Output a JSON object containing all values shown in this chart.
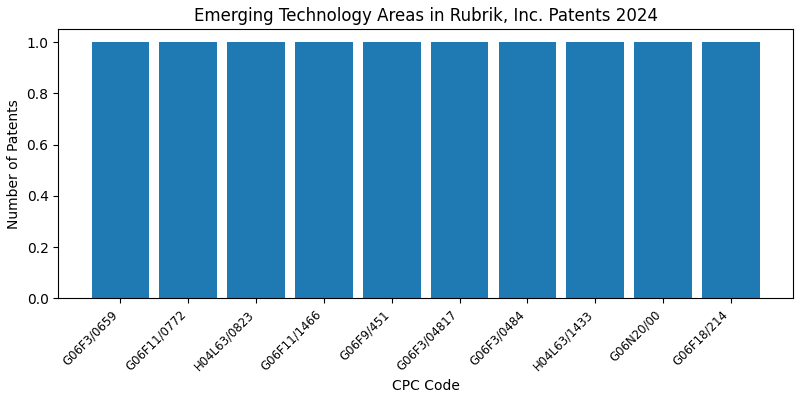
{
  "title": "Emerging Technology Areas in Rubrik, Inc. Patents 2024",
  "xlabel": "CPC Code",
  "ylabel": "Number of Patents",
  "categories": [
    "G06F3/0659",
    "G06F11/0772",
    "H04L63/0823",
    "G06F11/1466",
    "G06F9/451",
    "G06F3/04817",
    "G06F3/0484",
    "H04L63/1433",
    "G06N20/00",
    "G06F18/214"
  ],
  "values": [
    1,
    1,
    1,
    1,
    1,
    1,
    1,
    1,
    1,
    1
  ],
  "bar_color": "#1f7ab4",
  "ylim": [
    0,
    1.05
  ],
  "yticks": [
    0.0,
    0.2,
    0.4,
    0.6,
    0.8,
    1.0
  ],
  "bar_width": 0.85,
  "figsize": [
    8.0,
    4.0
  ],
  "dpi": 100,
  "title_fontsize": 12,
  "label_fontsize": 10,
  "tick_fontsize": 8.5
}
